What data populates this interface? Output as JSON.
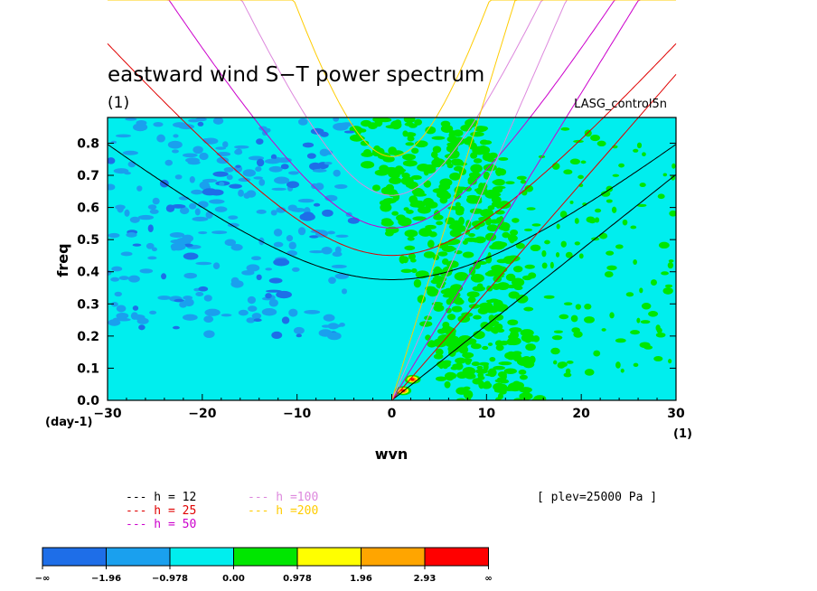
{
  "chart_data": {
    "type": "heatmap",
    "title": "eastward wind S−T power spectrum",
    "subtitle": "(1)",
    "case_label": "LASG_control5n",
    "xlabel": "wvn",
    "ylabel": "freq",
    "x_unit": "(1)",
    "y_unit": "(day-1)",
    "xlim": [
      -30,
      30
    ],
    "ylim": [
      0.0,
      0.88
    ],
    "x_ticks": [
      "−30",
      "−20",
      "−10",
      "0",
      "10",
      "20",
      "30"
    ],
    "y_ticks": [
      "0.0",
      "0.1",
      "0.2",
      "0.3",
      "0.4",
      "0.5",
      "0.6",
      "0.7",
      "0.8"
    ],
    "level_note": "[ plev=25000 Pa ]",
    "colorbar": {
      "labels": [
        "−∞",
        "−1.96",
        "−0.978",
        "0.00",
        "0.978",
        "1.96",
        "2.93",
        "∞"
      ],
      "colors": [
        "#1e6ee8",
        "#1aa0ee",
        "#00eeee",
        "#00e600",
        "#ffff00",
        "#ffa500",
        "#ff0000"
      ]
    },
    "series": [
      {
        "name": "h = 12",
        "color": "#000000",
        "equivalent_depth": 12
      },
      {
        "name": "h = 25",
        "color": "#e00000",
        "equivalent_depth": 25
      },
      {
        "name": "h = 50",
        "color": "#cc00cc",
        "equivalent_depth": 50
      },
      {
        "name": "h =100",
        "color": "#dd88dd",
        "equivalent_depth": 100
      },
      {
        "name": "h =200",
        "color": "#ffcc00",
        "equivalent_depth": 200
      }
    ],
    "background_field": "#00eeee",
    "grid": false,
    "legend_placement": "bottom-left"
  }
}
